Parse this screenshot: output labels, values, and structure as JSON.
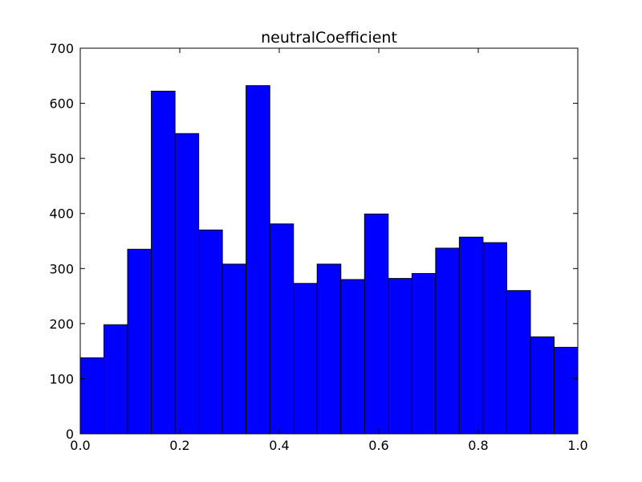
{
  "chart_data": {
    "type": "bar",
    "title": "neutralCoefficient",
    "xlabel": "",
    "ylabel": "",
    "xlim": [
      0.0,
      1.0
    ],
    "ylim": [
      0,
      700
    ],
    "bin_edges": [
      0.0,
      0.0476,
      0.0952,
      0.1429,
      0.1905,
      0.2381,
      0.2857,
      0.3333,
      0.381,
      0.4286,
      0.4762,
      0.5238,
      0.5714,
      0.619,
      0.6667,
      0.7143,
      0.7619,
      0.8095,
      0.8571,
      0.9048,
      0.9524,
      1.0
    ],
    "values": [
      138,
      198,
      335,
      622,
      545,
      370,
      308,
      632,
      381,
      273,
      308,
      280,
      399,
      282,
      291,
      337,
      357,
      347,
      260,
      176,
      157
    ],
    "x_ticks": [
      "0.0",
      "0.2",
      "0.4",
      "0.6",
      "0.8",
      "1.0"
    ],
    "y_ticks": [
      "0",
      "100",
      "200",
      "300",
      "400",
      "500",
      "600",
      "700"
    ],
    "grid": false,
    "bar_color": "#0000ff",
    "edge_color": "#000000"
  }
}
